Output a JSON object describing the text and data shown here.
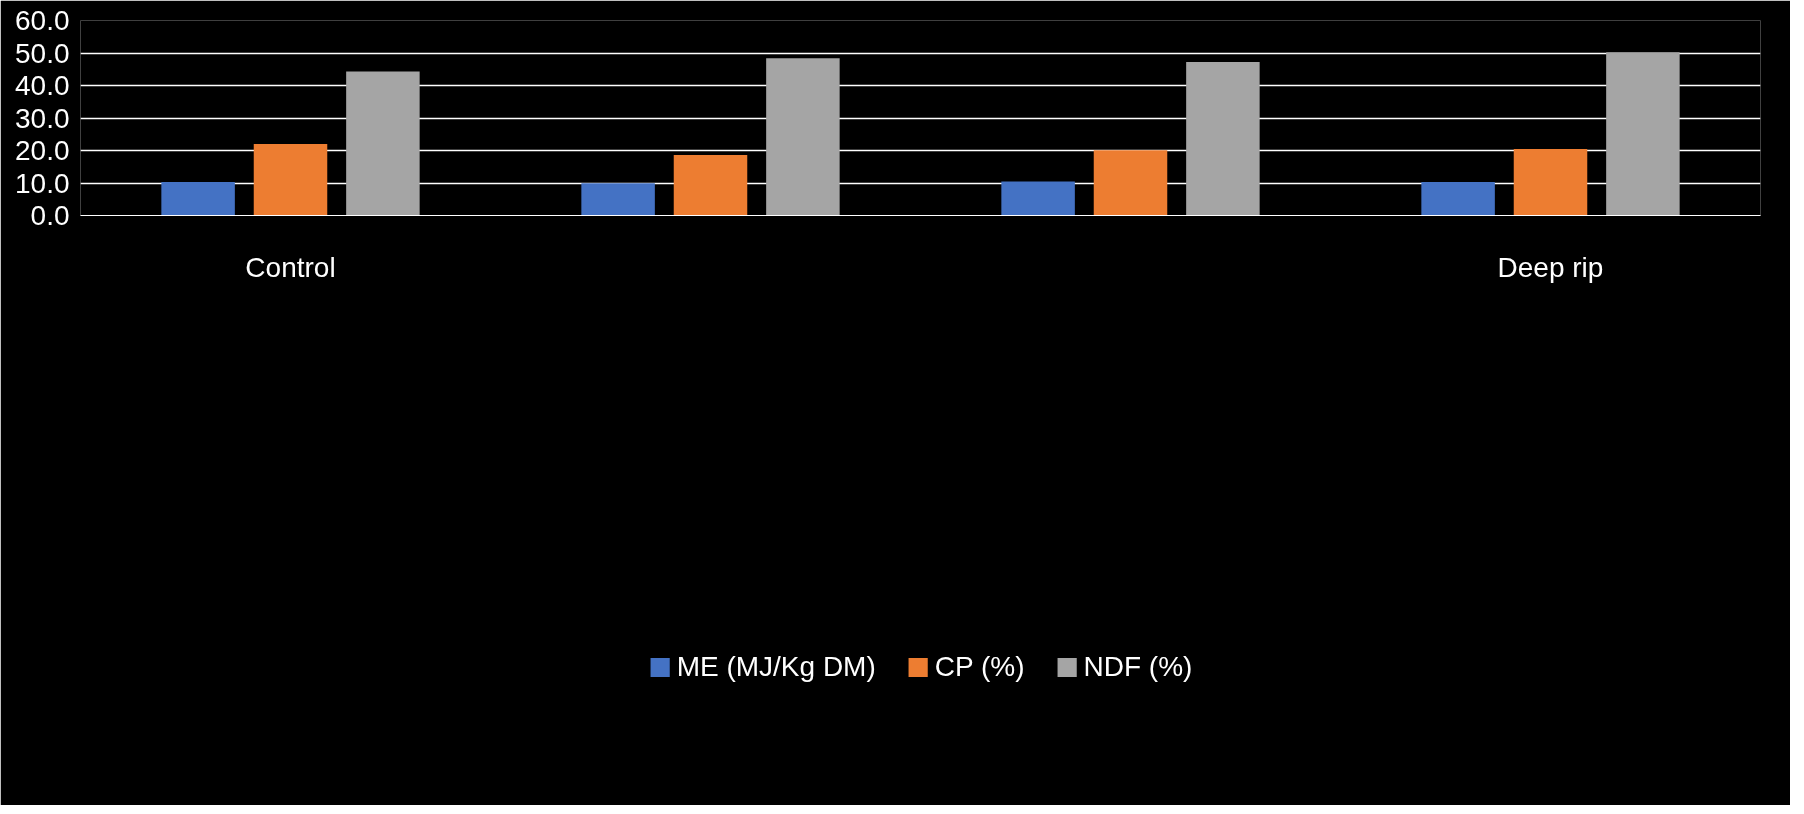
{
  "chart_data": {
    "type": "bar",
    "categories": [
      "Control",
      null,
      null,
      "Deep rip"
    ],
    "series": [
      {
        "name": "ME (MJ/Kg DM)",
        "color": "#4472c4",
        "values": [
          10.3,
          9.9,
          10.5,
          10.3
        ]
      },
      {
        "name": "CP (%)",
        "color": "#ed7d31",
        "values": [
          22.0,
          18.6,
          20.1,
          20.5
        ]
      },
      {
        "name": "NDF (%)",
        "color": "#a5a5a5",
        "values": [
          44.3,
          48.4,
          47.2,
          50.2
        ]
      }
    ],
    "ylim": [
      0,
      60
    ],
    "yticks": [
      {
        "value": 0,
        "label": "0.0"
      },
      {
        "value": 10,
        "label": "10.0"
      },
      {
        "value": 20,
        "label": "20.0"
      },
      {
        "value": 30,
        "label": "30.0"
      },
      {
        "value": 40,
        "label": "40.0"
      },
      {
        "value": 50,
        "label": "50.0"
      },
      {
        "value": 60,
        "label": "60.0"
      }
    ],
    "grid": "y",
    "legend": "bottom"
  }
}
